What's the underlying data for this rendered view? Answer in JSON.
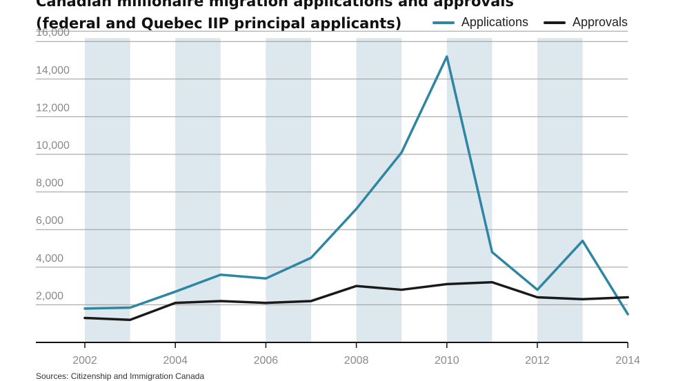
{
  "chart_data": {
    "type": "line",
    "title": "Canadian millionaire migration applications and approvals",
    "subtitle": "(federal and Quebec IIP principal applicants)",
    "x": [
      2002,
      2003,
      2004,
      2005,
      2006,
      2007,
      2008,
      2009,
      2010,
      2011,
      2012,
      2013,
      2014
    ],
    "xticks": [
      "2002",
      "2004",
      "2006",
      "2008",
      "2010",
      "2012",
      "2014"
    ],
    "yticks": [
      "2,000",
      "4,000",
      "6,000",
      "8,000",
      "10,000",
      "12,000",
      "14,000",
      "16,000"
    ],
    "ylim": [
      0,
      16000
    ],
    "grid": true,
    "legend_position": "top-right",
    "series": [
      {
        "name": "Applications",
        "color": "#2e86a3",
        "values": [
          1800,
          1850,
          2700,
          3600,
          3400,
          4500,
          7100,
          10100,
          15200,
          4800,
          2800,
          5400,
          1500
        ]
      },
      {
        "name": "Approvals",
        "color": "#1a1a1a",
        "values": [
          1300,
          1200,
          2100,
          2200,
          2100,
          2200,
          3000,
          2800,
          3100,
          3200,
          2400,
          2300,
          2400
        ]
      }
    ],
    "source": "Sources: Citizenship and Immigration Canada"
  }
}
